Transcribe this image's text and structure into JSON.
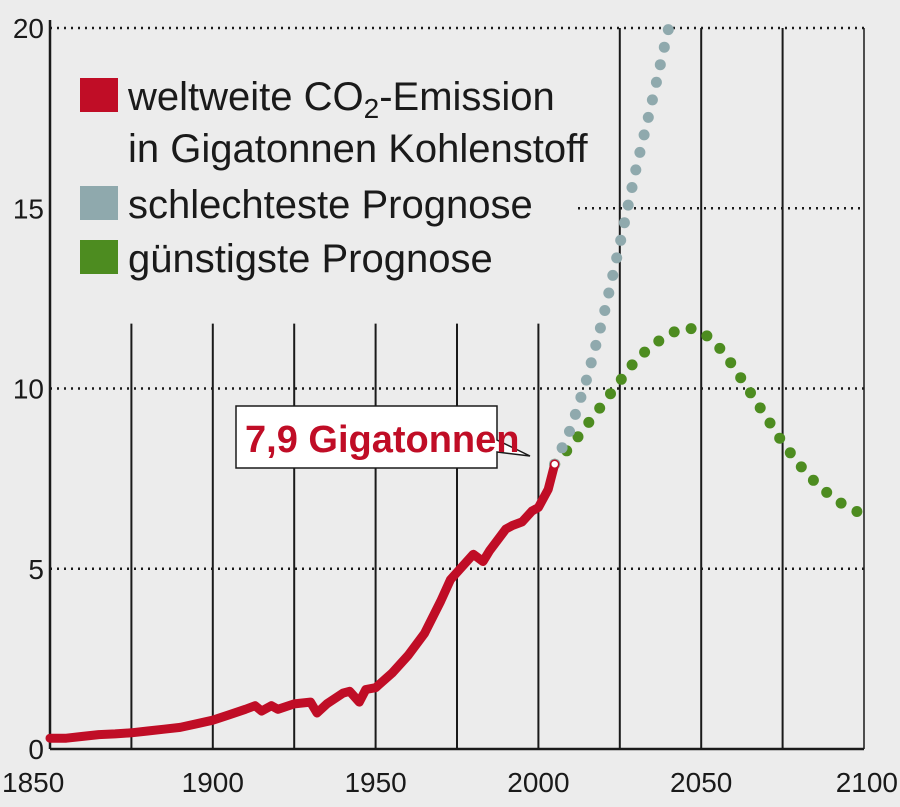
{
  "chart_data": {
    "type": "line",
    "x_range": [
      1850,
      2100
    ],
    "y_range": [
      0,
      20
    ],
    "x_ticks": [
      1850,
      1900,
      1950,
      2000,
      2050,
      2100
    ],
    "y_ticks": [
      0,
      5,
      10,
      15,
      20
    ],
    "x_tick_labels": [
      "1850",
      "1900",
      "1950",
      "2000",
      "2050",
      "2100"
    ],
    "y_tick_labels": [
      "0",
      "5",
      "10",
      "15",
      "20"
    ],
    "vertical_grid_years": [
      1875,
      1900,
      1925,
      1950,
      1975,
      2000,
      2025,
      2050,
      2075
    ],
    "legend_position": "top-left",
    "legend": {
      "line1_prefix": "weltweite CO",
      "line1_sub": "2",
      "line1_suffix": "-Emission",
      "line2": "in Gigatonnen Kohlenstoff",
      "worst": "schlechteste Prognose",
      "best": "günstigste Prognose"
    },
    "annotation": {
      "text": "7,9 Gigatonnen",
      "x": 2005,
      "y": 7.9
    },
    "colors": {
      "historical": "#c00d26",
      "worst": "#8fa9ad",
      "best": "#4d8c20",
      "background": "#ececec",
      "grid": "#1a1a1a"
    },
    "series": [
      {
        "name": "weltweite CO2-Emission in Gigatonnen Kohlenstoff",
        "style": "solid",
        "x": [
          1850,
          1855,
          1860,
          1865,
          1870,
          1875,
          1880,
          1885,
          1890,
          1895,
          1900,
          1905,
          1910,
          1913,
          1915,
          1918,
          1920,
          1925,
          1930,
          1932,
          1935,
          1940,
          1942,
          1945,
          1947,
          1950,
          1955,
          1960,
          1965,
          1970,
          1973,
          1975,
          1980,
          1983,
          1985,
          1990,
          1992,
          1995,
          1998,
          2000,
          2003,
          2005
        ],
        "y": [
          0.3,
          0.3,
          0.35,
          0.4,
          0.42,
          0.45,
          0.5,
          0.55,
          0.6,
          0.7,
          0.8,
          0.95,
          1.1,
          1.2,
          1.05,
          1.2,
          1.1,
          1.25,
          1.3,
          1.0,
          1.25,
          1.55,
          1.6,
          1.3,
          1.65,
          1.7,
          2.1,
          2.6,
          3.2,
          4.1,
          4.7,
          4.9,
          5.4,
          5.2,
          5.5,
          6.1,
          6.2,
          6.3,
          6.6,
          6.7,
          7.2,
          7.9
        ]
      },
      {
        "name": "schlechteste Prognose",
        "style": "dotted",
        "x": [
          2005,
          2010,
          2015,
          2020,
          2025,
          2030,
          2035,
          2040
        ],
        "y": [
          7.9,
          8.9,
          10.3,
          12.0,
          14.0,
          16.1,
          18.0,
          20.0
        ]
      },
      {
        "name": "günstigste Prognose",
        "style": "dotted",
        "x": [
          2005,
          2010,
          2015,
          2020,
          2025,
          2030,
          2035,
          2040,
          2045,
          2050,
          2055,
          2060,
          2065,
          2070,
          2075,
          2080,
          2085,
          2090,
          2095,
          2100
        ],
        "y": [
          7.9,
          8.4,
          9.0,
          9.6,
          10.2,
          10.8,
          11.2,
          11.5,
          11.7,
          11.6,
          11.2,
          10.6,
          9.9,
          9.2,
          8.5,
          7.9,
          7.4,
          7.0,
          6.7,
          6.5
        ]
      }
    ]
  }
}
